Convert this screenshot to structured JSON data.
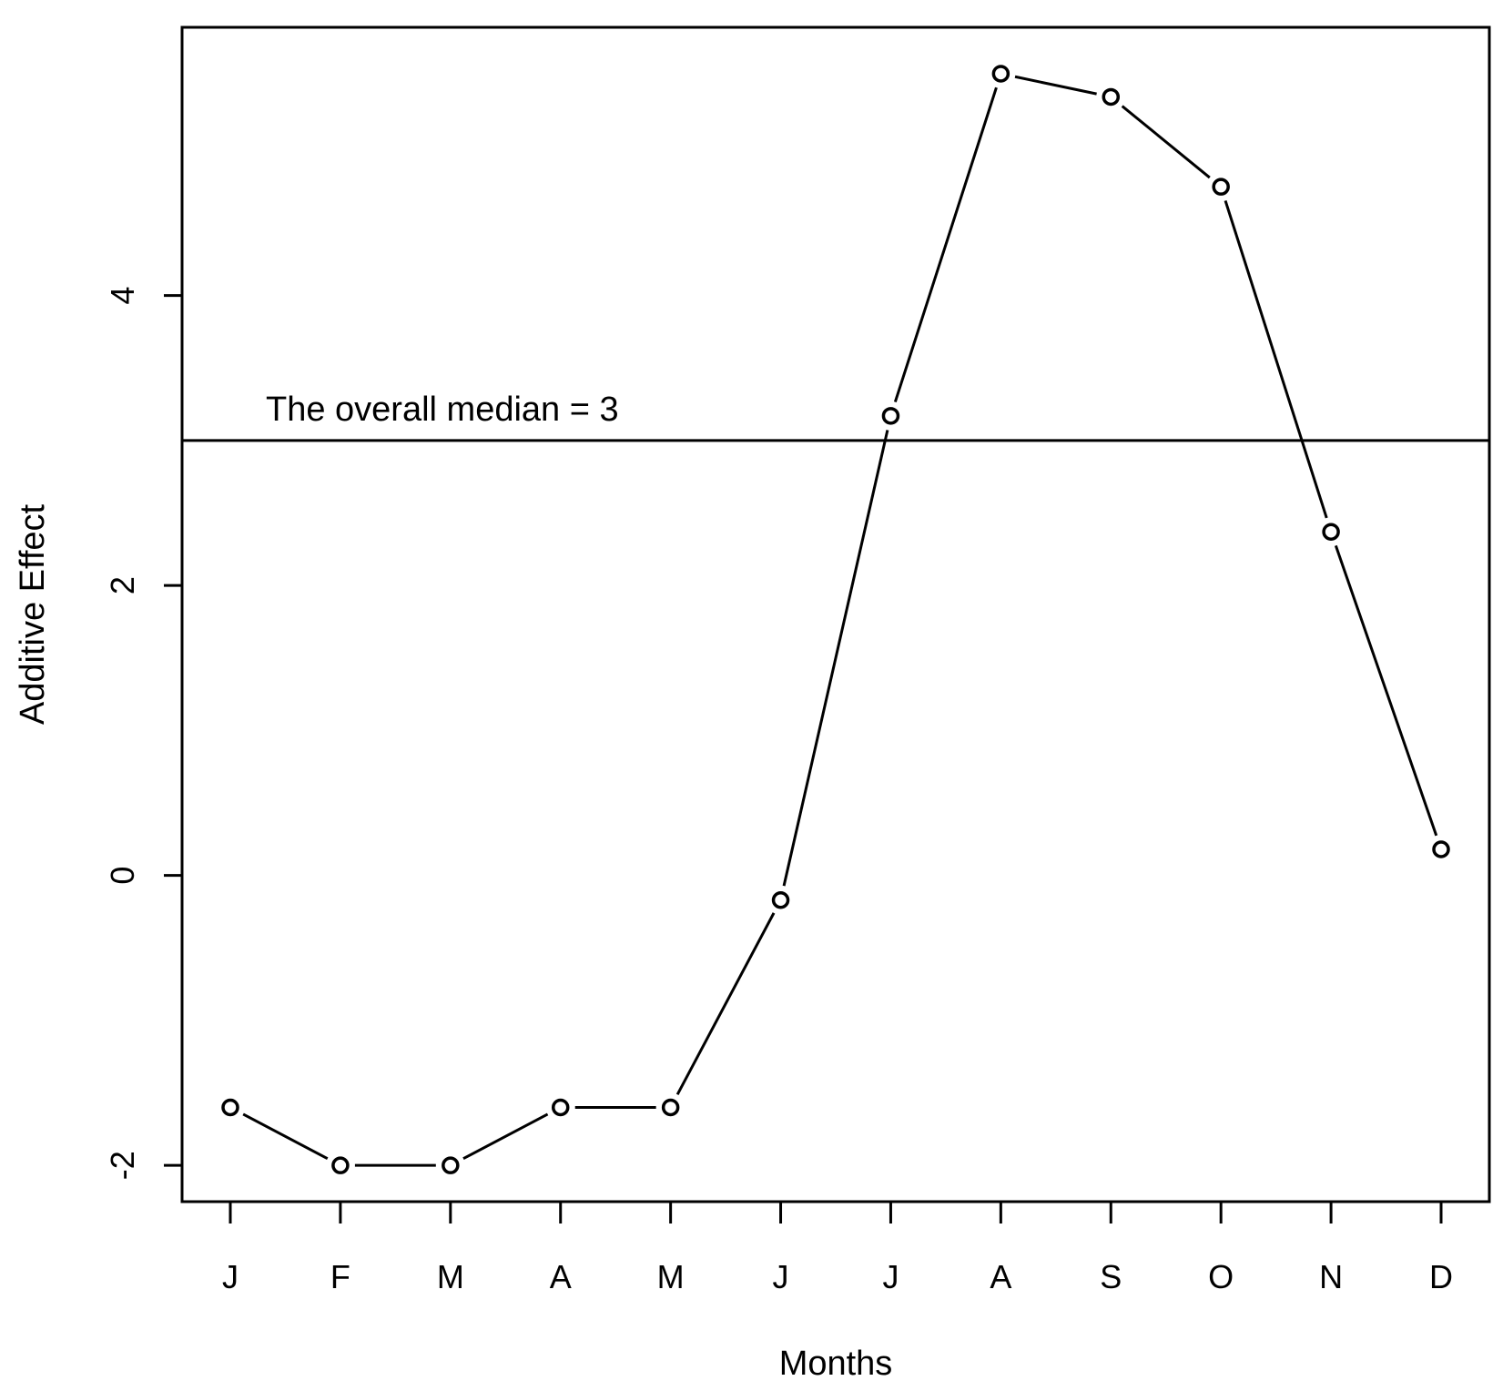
{
  "chart_data": {
    "type": "line",
    "title": "",
    "xlabel": "Months",
    "ylabel": "Additive Effect",
    "categories": [
      "J",
      "F",
      "M",
      "A",
      "M",
      "J",
      "J",
      "A",
      "S",
      "O",
      "N",
      "D"
    ],
    "series": [
      {
        "values": [
          -1.6,
          -2.0,
          -2.0,
          -1.6,
          -1.6,
          -0.17,
          3.17,
          5.53,
          5.37,
          4.75,
          2.37,
          0.18
        ]
      }
    ],
    "ylim": [
      -2.25,
      5.85
    ],
    "yticks": [
      -2,
      0,
      2,
      4
    ],
    "ytick_labels": [
      "-2",
      "0",
      "2",
      "4"
    ],
    "markers": "open-circle",
    "grid": false,
    "legend": "none",
    "reference_line": {
      "y": 3,
      "label": "The overall median = 3"
    },
    "colors": {
      "line": "#000000",
      "background": "#ffffff"
    }
  }
}
